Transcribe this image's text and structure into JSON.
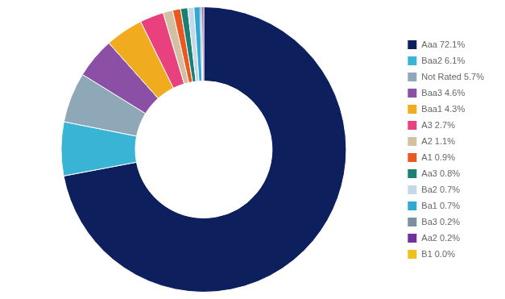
{
  "chart_data": {
    "type": "doughnut",
    "categories": [
      "Aaa 72.1%",
      "Baa2 6.1%",
      "Not Rated 5.7%",
      "Baa3 4.6%",
      "Baa1 4.3%",
      "A3 2.7%",
      "A2 1.1%",
      "A1 0.9%",
      "Aa3 0.8%",
      "Ba2 0.7%",
      "Ba1 0.7%",
      "Ba3 0.2%",
      "Aa2 0.2%",
      "B1 0.0%"
    ],
    "values": [
      72.1,
      6.1,
      5.7,
      4.6,
      4.3,
      2.7,
      1.1,
      0.9,
      0.8,
      0.7,
      0.7,
      0.2,
      0.2,
      0.0
    ],
    "colors": [
      "#0d1f5c",
      "#3ab4d4",
      "#8fa8b8",
      "#8b4fa6",
      "#f0ac1e",
      "#e8417e",
      "#d4bfa0",
      "#e85820",
      "#1a7f74",
      "#c5d8e8",
      "#30a8d4",
      "#7a8fa0",
      "#7030a0",
      "#f0c01e"
    ],
    "legend": "right"
  }
}
